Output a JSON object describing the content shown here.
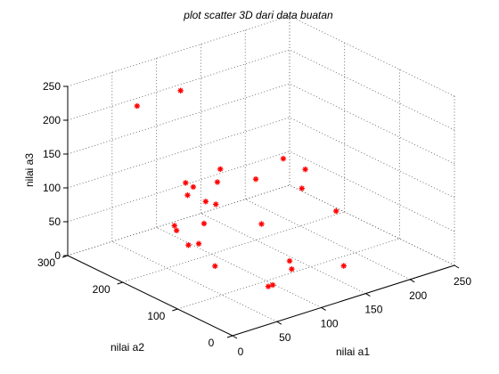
{
  "chart_data": {
    "type": "scatter",
    "title": "plot scatter 3D dari data buatan",
    "xlabel": "nilai a1",
    "ylabel": "nilai a2",
    "zlabel": "nilai a3",
    "xlim": [
      0,
      250
    ],
    "ylim": [
      0,
      300
    ],
    "zlim": [
      0,
      250
    ],
    "xticks": [
      0,
      50,
      100,
      150,
      200,
      250
    ],
    "yticks": [
      0,
      100,
      200,
      300
    ],
    "zticks": [
      0,
      50,
      100,
      150,
      200,
      250
    ],
    "xticklabels": [
      "0",
      "50",
      "100",
      "150",
      "200",
      "250"
    ],
    "yticklabels": [
      "0",
      "100",
      "200",
      "300"
    ],
    "zticklabels": [
      "0",
      "50",
      "100",
      "150",
      "200",
      "250"
    ],
    "grid": true,
    "marker": "*",
    "marker_color": "#ff0000",
    "points": [
      {
        "x": 15,
        "y": 198,
        "z": 255
      },
      {
        "x": 90,
        "y": 240,
        "z": 230
      },
      {
        "x": 20,
        "y": 60,
        "z": 195
      },
      {
        "x": 45,
        "y": 95,
        "z": 190
      },
      {
        "x": 5,
        "y": 90,
        "z": 170
      },
      {
        "x": 30,
        "y": 120,
        "z": 160
      },
      {
        "x": 40,
        "y": 150,
        "z": 150
      },
      {
        "x": 5,
        "y": 60,
        "z": 140
      },
      {
        "x": 40,
        "y": 95,
        "z": 140
      },
      {
        "x": 5,
        "y": 110,
        "z": 110
      },
      {
        "x": 15,
        "y": 130,
        "z": 105
      },
      {
        "x": 75,
        "y": 170,
        "z": 100
      },
      {
        "x": 5,
        "y": 40,
        "z": 85
      },
      {
        "x": 30,
        "y": 110,
        "z": 80
      },
      {
        "x": 150,
        "y": 150,
        "z": 140
      },
      {
        "x": 150,
        "y": 110,
        "z": 140
      },
      {
        "x": 140,
        "y": 100,
        "z": 120
      },
      {
        "x": 160,
        "y": 70,
        "z": 90
      },
      {
        "x": 150,
        "y": 200,
        "z": 90
      },
      {
        "x": 110,
        "y": 125,
        "z": 70
      },
      {
        "x": 70,
        "y": 40,
        "z": 30
      },
      {
        "x": 65,
        "y": 40,
        "z": 30
      },
      {
        "x": 110,
        "y": 70,
        "z": 25
      },
      {
        "x": 120,
        "y": 90,
        "z": 25
      },
      {
        "x": 150,
        "y": 40,
        "z": 25
      },
      {
        "x": 40,
        "y": 145,
        "z": 60
      }
    ]
  }
}
